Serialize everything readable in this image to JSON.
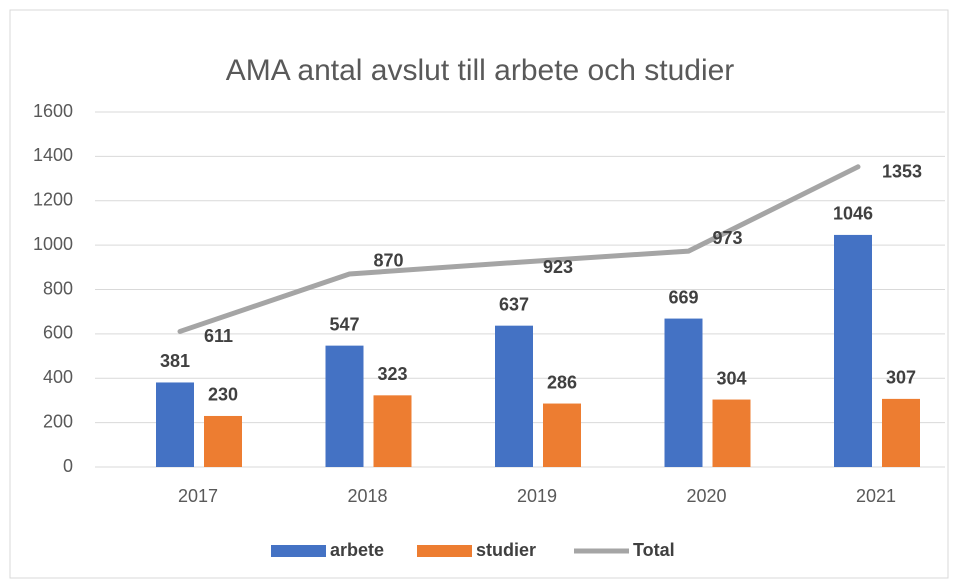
{
  "chart_data": {
    "type": "bar_line",
    "title": "AMA antal avslut till arbete och studier",
    "categories": [
      "2017",
      "2018",
      "2019",
      "2020",
      "2021"
    ],
    "series": [
      {
        "name": "arbete",
        "type": "bar",
        "color": "#4472c4",
        "values": [
          381,
          547,
          637,
          669,
          1046
        ]
      },
      {
        "name": "studier",
        "type": "bar",
        "color": "#ed7d31",
        "values": [
          230,
          323,
          286,
          304,
          307
        ]
      },
      {
        "name": "Total",
        "type": "line",
        "color": "#a5a5a5",
        "values": [
          611,
          870,
          923,
          973,
          1353
        ]
      }
    ],
    "ylim": [
      0,
      1600
    ],
    "yticks": [
      0,
      200,
      400,
      600,
      800,
      1000,
      1200,
      1400,
      1600
    ],
    "grid": true,
    "legend": "bottom"
  }
}
